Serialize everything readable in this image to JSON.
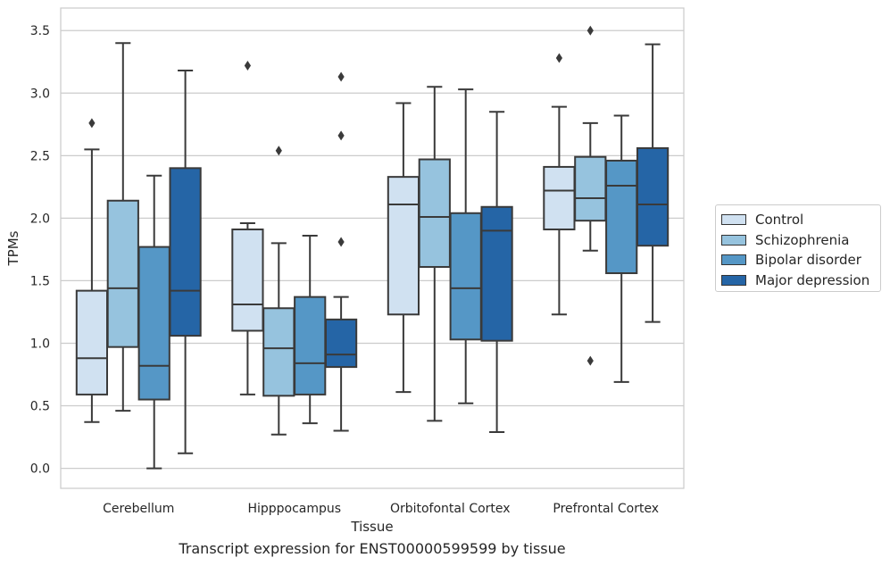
{
  "chart_data": {
    "type": "box",
    "title": "",
    "caption": "Transcript expression for ENST00000599599 by tissue",
    "xlabel": "Tissue",
    "ylabel": "TPMs",
    "ylim": [
      -0.16,
      3.68
    ],
    "yticks": [
      "0.0",
      "0.5",
      "1.0",
      "1.5",
      "2.0",
      "2.5",
      "3.0",
      "3.5"
    ],
    "ytick_values": [
      0,
      0.5,
      1.0,
      1.5,
      2.0,
      2.5,
      3.0,
      3.5
    ],
    "grid": "horizontal",
    "legend_position": "right",
    "categories": [
      "Cerebellum",
      "Hipppocampus",
      "Orbitofontal Cortex",
      "Prefrontal Cortex"
    ],
    "series": [
      {
        "name": "Control",
        "color": "#d0e1f1",
        "boxes": [
          {
            "whisker_low": 0.37,
            "q1": 0.59,
            "median": 0.88,
            "q3": 1.42,
            "whisker_high": 2.55,
            "outliers": [
              2.76
            ]
          },
          {
            "whisker_low": 0.59,
            "q1": 1.1,
            "median": 1.31,
            "q3": 1.91,
            "whisker_high": 1.96,
            "outliers": [
              3.22
            ]
          },
          {
            "whisker_low": 0.61,
            "q1": 1.23,
            "median": 2.11,
            "q3": 2.33,
            "whisker_high": 2.92,
            "outliers": []
          },
          {
            "whisker_low": 1.23,
            "q1": 1.91,
            "median": 2.22,
            "q3": 2.41,
            "whisker_high": 2.89,
            "outliers": [
              3.28
            ]
          }
        ]
      },
      {
        "name": "Schizophrenia",
        "color": "#96c3de",
        "boxes": [
          {
            "whisker_low": 0.46,
            "q1": 0.97,
            "median": 1.44,
            "q3": 2.14,
            "whisker_high": 3.4,
            "outliers": []
          },
          {
            "whisker_low": 0.27,
            "q1": 0.58,
            "median": 0.96,
            "q3": 1.28,
            "whisker_high": 1.8,
            "outliers": [
              2.54
            ]
          },
          {
            "whisker_low": 0.38,
            "q1": 1.61,
            "median": 2.01,
            "q3": 2.47,
            "whisker_high": 3.05,
            "outliers": []
          },
          {
            "whisker_low": 1.74,
            "q1": 1.98,
            "median": 2.16,
            "q3": 2.49,
            "whisker_high": 2.76,
            "outliers": [
              0.86,
              3.5
            ]
          }
        ]
      },
      {
        "name": "Bipolar disorder",
        "color": "#5597c6",
        "boxes": [
          {
            "whisker_low": 0.0,
            "q1": 0.55,
            "median": 0.82,
            "q3": 1.77,
            "whisker_high": 2.34,
            "outliers": []
          },
          {
            "whisker_low": 0.36,
            "q1": 0.59,
            "median": 0.84,
            "q3": 1.37,
            "whisker_high": 1.86,
            "outliers": []
          },
          {
            "whisker_low": 0.52,
            "q1": 1.03,
            "median": 1.44,
            "q3": 2.04,
            "whisker_high": 3.03,
            "outliers": []
          },
          {
            "whisker_low": 0.69,
            "q1": 1.56,
            "median": 2.26,
            "q3": 2.46,
            "whisker_high": 2.82,
            "outliers": []
          }
        ]
      },
      {
        "name": "Major depression",
        "color": "#2565a6",
        "boxes": [
          {
            "whisker_low": 0.12,
            "q1": 1.06,
            "median": 1.42,
            "q3": 2.4,
            "whisker_high": 3.18,
            "outliers": []
          },
          {
            "whisker_low": 0.3,
            "q1": 0.81,
            "median": 0.91,
            "q3": 1.19,
            "whisker_high": 1.37,
            "outliers": [
              1.81,
              2.66,
              3.13
            ]
          },
          {
            "whisker_low": 0.29,
            "q1": 1.02,
            "median": 1.9,
            "q3": 2.09,
            "whisker_high": 2.85,
            "outliers": []
          },
          {
            "whisker_low": 1.17,
            "q1": 1.78,
            "median": 2.11,
            "q3": 2.56,
            "whisker_high": 3.39,
            "outliers": []
          }
        ]
      }
    ]
  }
}
